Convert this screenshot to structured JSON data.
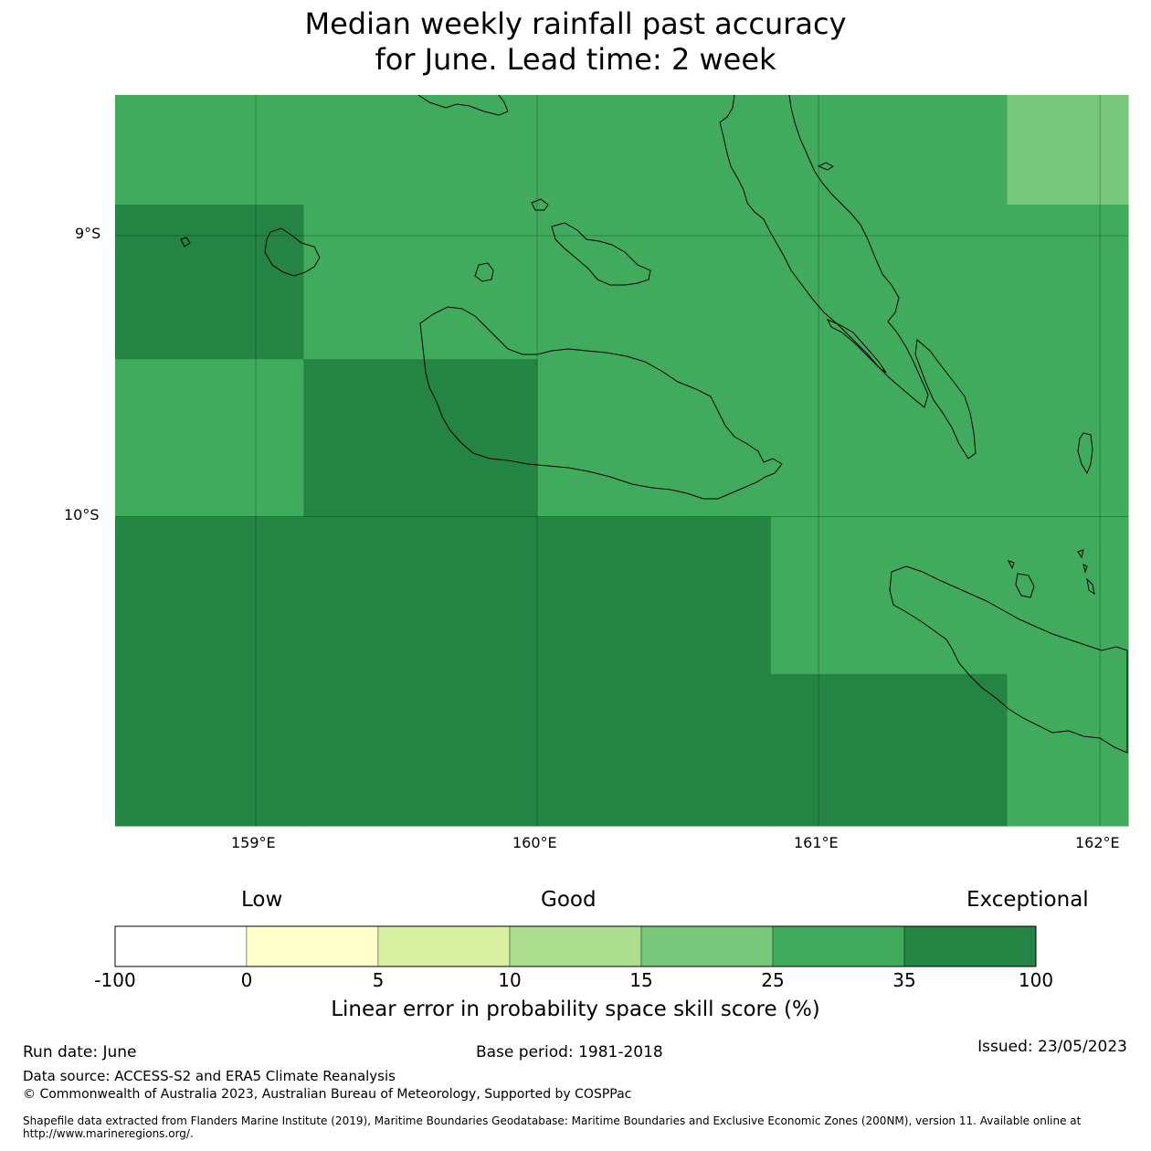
{
  "title": {
    "line1": "Median weekly rainfall past accuracy",
    "line2": "for June. Lead time: 2 week"
  },
  "map": {
    "lat_labels": [
      "9°S",
      "10°S"
    ],
    "lon_labels": [
      "159°E",
      "160°E",
      "161°E",
      "162°E"
    ],
    "lon_range": [
      158.5,
      162.1
    ],
    "lat_range": [
      -8.5,
      -11.1
    ],
    "cells": [
      {
        "lon": [
          158.5,
          159.17
        ],
        "lat": [
          -8.5,
          -8.89
        ],
        "cls": 25
      },
      {
        "lon": [
          159.17,
          160.0
        ],
        "lat": [
          -8.5,
          -8.89
        ],
        "cls": 25
      },
      {
        "lon": [
          160.0,
          160.83
        ],
        "lat": [
          -8.5,
          -8.89
        ],
        "cls": 25
      },
      {
        "lon": [
          160.83,
          161.67
        ],
        "lat": [
          -8.5,
          -8.89
        ],
        "cls": 25
      },
      {
        "lon": [
          161.67,
          162.1
        ],
        "lat": [
          -8.5,
          -8.89
        ],
        "cls": 15
      },
      {
        "lon": [
          158.5,
          159.17
        ],
        "lat": [
          -8.89,
          -9.44
        ],
        "cls": 35
      },
      {
        "lon": [
          159.17,
          160.0
        ],
        "lat": [
          -8.89,
          -9.44
        ],
        "cls": 25
      },
      {
        "lon": [
          160.0,
          160.83
        ],
        "lat": [
          -8.89,
          -9.44
        ],
        "cls": 25
      },
      {
        "lon": [
          160.83,
          161.67
        ],
        "lat": [
          -8.89,
          -9.44
        ],
        "cls": 25
      },
      {
        "lon": [
          161.67,
          162.1
        ],
        "lat": [
          -8.89,
          -9.44
        ],
        "cls": 25
      },
      {
        "lon": [
          158.5,
          159.17
        ],
        "lat": [
          -9.44,
          -10.0
        ],
        "cls": 25
      },
      {
        "lon": [
          159.17,
          160.0
        ],
        "lat": [
          -9.44,
          -10.0
        ],
        "cls": 35
      },
      {
        "lon": [
          160.0,
          160.83
        ],
        "lat": [
          -9.44,
          -10.0
        ],
        "cls": 25
      },
      {
        "lon": [
          160.83,
          161.67
        ],
        "lat": [
          -9.44,
          -10.0
        ],
        "cls": 25
      },
      {
        "lon": [
          161.67,
          162.1
        ],
        "lat": [
          -9.44,
          -10.0
        ],
        "cls": 25
      },
      {
        "lon": [
          158.5,
          159.17
        ],
        "lat": [
          -10.0,
          -10.56
        ],
        "cls": 35
      },
      {
        "lon": [
          159.17,
          160.0
        ],
        "lat": [
          -10.0,
          -10.56
        ],
        "cls": 35
      },
      {
        "lon": [
          160.0,
          160.83
        ],
        "lat": [
          -10.0,
          -10.56
        ],
        "cls": 35
      },
      {
        "lon": [
          160.83,
          161.67
        ],
        "lat": [
          -10.0,
          -10.56
        ],
        "cls": 25
      },
      {
        "lon": [
          161.67,
          162.1
        ],
        "lat": [
          -10.0,
          -10.56
        ],
        "cls": 25
      },
      {
        "lon": [
          158.5,
          159.17
        ],
        "lat": [
          -10.56,
          -11.1
        ],
        "cls": 35
      },
      {
        "lon": [
          159.17,
          160.0
        ],
        "lat": [
          -10.56,
          -11.1
        ],
        "cls": 35
      },
      {
        "lon": [
          160.0,
          160.83
        ],
        "lat": [
          -10.56,
          -11.1
        ],
        "cls": 35
      },
      {
        "lon": [
          160.83,
          161.67
        ],
        "lat": [
          -10.56,
          -11.1
        ],
        "cls": 35
      },
      {
        "lon": [
          161.67,
          162.1
        ],
        "lat": [
          -10.56,
          -11.1
        ],
        "cls": 25
      }
    ]
  },
  "colorbar": {
    "heading_low": "Low",
    "heading_good": "Good",
    "heading_exceptional": "Exceptional",
    "ticks": [
      "-100",
      "0",
      "5",
      "10",
      "15",
      "25",
      "35",
      "100"
    ],
    "colors": [
      "#ffffff",
      "#ffffcc",
      "#d9f0a3",
      "#addd8e",
      "#78c679",
      "#41ab5d",
      "#238443"
    ],
    "label": "Linear error in probability space skill score (%)"
  },
  "footer": {
    "run_date": "Run date: June",
    "base_period": "Base period: 1981-2018",
    "issued": "Issued: 23/05/2023",
    "data_source": "Data source: ACCESS-S2 and ERA5 Climate Reanalysis",
    "copyright": "© Commonwealth of Australia 2023, Australian Bureau of Meteorology, Supported by COSPPac",
    "shapefile": "Shapefile data extracted from Flanders Marine Institute (2019), Maritime Boundaries Geodatabase: Maritime Boundaries and Exclusive Economic Zones (200NM), version 11. Available online at http://www.marineregions.org/."
  }
}
